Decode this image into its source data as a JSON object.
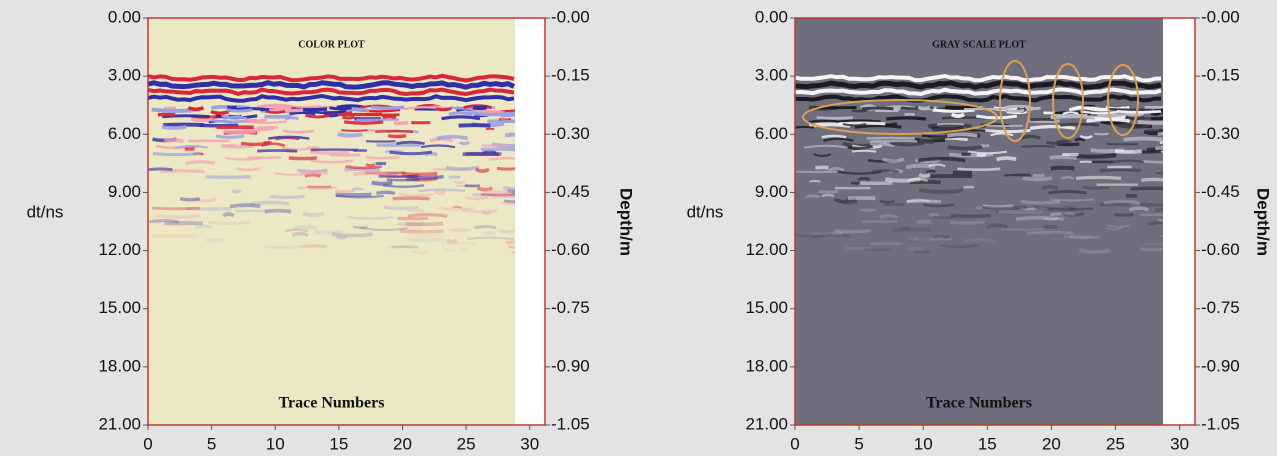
{
  "chart_data": [
    {
      "type": "radargram",
      "title": "COLOR PLOT",
      "xlabel": "Trace Numbers",
      "ylabel": "dt/ns",
      "y2label": "Depth/m",
      "background": "#ece8c4",
      "palette": [
        "#d8263a",
        "#2f2fa8",
        "#f3a0b0",
        "#9aa0e0"
      ],
      "xlim": [
        0,
        31.2
      ],
      "xticks": [
        0,
        5,
        10,
        15,
        20,
        25,
        30
      ],
      "ylim": [
        0,
        21
      ],
      "y_inverted": true,
      "yticks": [
        {
          "value": 0,
          "label": "0.00"
        },
        {
          "value": 3,
          "label": "3.00"
        },
        {
          "value": 6,
          "label": "6.00"
        },
        {
          "value": 9,
          "label": "9.00"
        },
        {
          "value": 12,
          "label": "12.00"
        },
        {
          "value": 15,
          "label": "15.00"
        },
        {
          "value": 18,
          "label": "18.00"
        },
        {
          "value": 21,
          "label": "21.00"
        }
      ],
      "y2lim": [
        0,
        -1.05
      ],
      "y2ticks": [
        {
          "value": 0,
          "label": "-0.00"
        },
        {
          "value": -0.15,
          "label": "-0.15"
        },
        {
          "value": -0.3,
          "label": "-0.30"
        },
        {
          "value": -0.45,
          "label": "-0.45"
        },
        {
          "value": -0.6,
          "label": "-0.60"
        },
        {
          "value": -0.75,
          "label": "-0.75"
        },
        {
          "value": -0.9,
          "label": "-0.90"
        },
        {
          "value": -1.05,
          "label": "-1.05"
        }
      ]
    },
    {
      "type": "radargram",
      "title": "GRAY SCALE PLOT",
      "xlabel": "Trace Numbers",
      "ylabel": "dt/ns",
      "y2label": "Depth/m",
      "background": "#6e6e7e",
      "palette": [
        "#f4f4f4",
        "#1a1a22",
        "#b8b8c4",
        "#3c3c48"
      ],
      "xlim": [
        0,
        31.2
      ],
      "xticks": [
        0,
        5,
        10,
        15,
        20,
        25,
        30
      ],
      "ylim": [
        0,
        21
      ],
      "y_inverted": true,
      "yticks": [
        {
          "value": 0,
          "label": "0.00"
        },
        {
          "value": 3,
          "label": "3.00"
        },
        {
          "value": 6,
          "label": "6.00"
        },
        {
          "value": 9,
          "label": "9.00"
        },
        {
          "value": 12,
          "label": "12.00"
        },
        {
          "value": 15,
          "label": "15.00"
        },
        {
          "value": 18,
          "label": "18.00"
        },
        {
          "value": 21,
          "label": "21.00"
        }
      ],
      "y2lim": [
        0,
        -1.05
      ],
      "y2ticks": [
        {
          "value": 0,
          "label": "-0.00"
        },
        {
          "value": -0.15,
          "label": "-0.15"
        },
        {
          "value": -0.3,
          "label": "-0.30"
        },
        {
          "value": -0.45,
          "label": "-0.45"
        },
        {
          "value": -0.6,
          "label": "-0.60"
        },
        {
          "value": -0.75,
          "label": "-0.75"
        },
        {
          "value": -0.9,
          "label": "-0.90"
        },
        {
          "value": -1.05,
          "label": "-1.05"
        }
      ]
    }
  ]
}
